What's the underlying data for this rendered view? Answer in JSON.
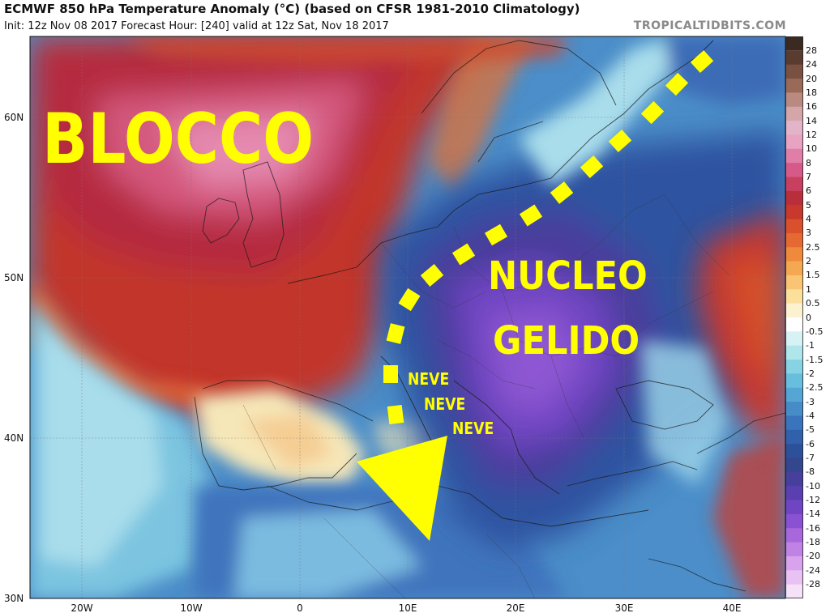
{
  "header": {
    "title": "ECMWF 850 hPa Temperature Anomaly (°C) (based on CFSR 1981-2010 Climatology)",
    "subtitle": "Init: 12z Nov 08 2017   Forecast Hour: [240]   valid at 12z Sat, Nov 18 2017",
    "brand": "TROPICALTIDBITS.COM"
  },
  "axes": {
    "lat_labels": [
      "60N",
      "50N",
      "40N",
      "30N"
    ],
    "lon_labels": [
      "20W",
      "10W",
      "0",
      "10E",
      "20E",
      "30E",
      "40E"
    ]
  },
  "colorbar": {
    "levels": [
      "28",
      "24",
      "20",
      "18",
      "16",
      "14",
      "12",
      "10",
      "8",
      "7",
      "6",
      "5",
      "4",
      "3",
      "2.5",
      "2",
      "1.5",
      "1",
      "0.5",
      "0",
      "-0.5",
      "-1",
      "-1.5",
      "-2",
      "-2.5",
      "-3",
      "-4",
      "-5",
      "-6",
      "-7",
      "-8",
      "-10",
      "-12",
      "-14",
      "-16",
      "-18",
      "-20",
      "-24",
      "-28"
    ],
    "colors": [
      "#5a3b30",
      "#7a5040",
      "#9a6a58",
      "#b98a80",
      "#d4a6aa",
      "#e3b3c8",
      "#e8a2c2",
      "#e07ea8",
      "#d55a88",
      "#c84060",
      "#b82f3b",
      "#c8382c",
      "#d8502c",
      "#e56a32",
      "#ef8a3c",
      "#f5a852",
      "#f9c575",
      "#fbe09c",
      "#fdf2cf",
      "#ffffff",
      "#d6f2f5",
      "#aee6ec",
      "#86d3e3",
      "#68bedd",
      "#55a6d4",
      "#468cc8",
      "#3a74bc",
      "#3160ac",
      "#2d509a",
      "#33468e",
      "#463f9c",
      "#5a3fb0",
      "#7045c4",
      "#8a52d2",
      "#a868dc",
      "#c082e4",
      "#d8a2ec",
      "#e8c2f2",
      "#f5e2f8"
    ]
  },
  "annotations": {
    "blocco": "BLOCCO",
    "nucleo": "NUCLEO",
    "gelido": "GELIDO",
    "neve": [
      "NEVE",
      "NEVE",
      "NEVE"
    ]
  },
  "colors": {
    "annotation": "#ffff00",
    "warm_anomaly": "#c8392e",
    "cold_anomaly": "#5a3fb0"
  }
}
